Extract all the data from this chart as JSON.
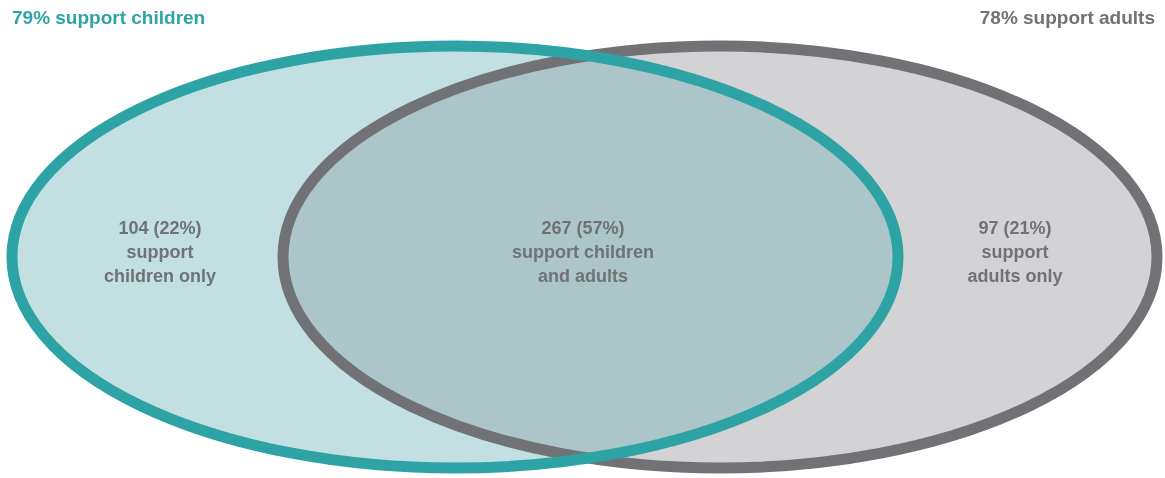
{
  "chart_data": {
    "type": "other",
    "categories": [
      "support children only",
      "support children and adults",
      "support adults only"
    ],
    "values": [
      104,
      267,
      97
    ],
    "value_labels": [
      "104 (22%)",
      "267 (57%)",
      "97 (21%)"
    ],
    "colors": [
      "#c2dfe1",
      "#abc5c8",
      "#d3d3d5"
    ],
    "annotations": [
      "79% support children",
      "78% support adults"
    ]
  }
}
